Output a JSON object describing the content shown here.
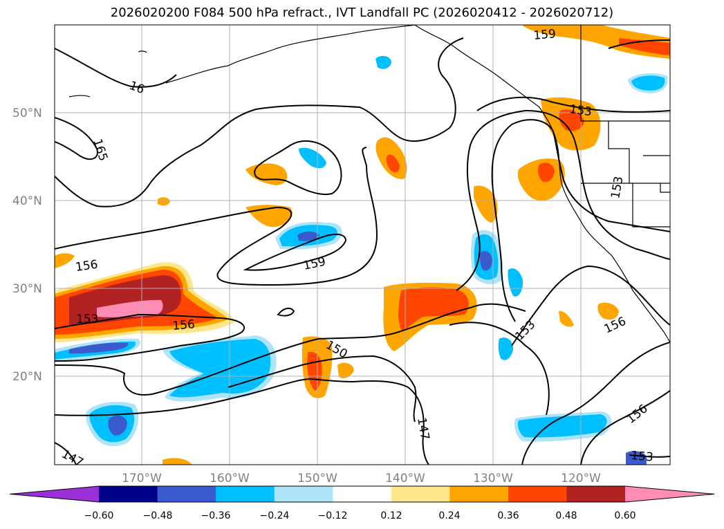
{
  "title": "2026020200 F084 500 hPa refract., IVT Landfall PC (2026020412 - 2026020712)",
  "map": {
    "lat_labels": [
      "50°N",
      "40°N",
      "30°N",
      "20°N"
    ],
    "lon_labels": [
      "170°W",
      "160°W",
      "150°W",
      "140°W",
      "130°W",
      "120°W"
    ],
    "contour_labels": [
      "16",
      "165",
      "156",
      "153",
      "156",
      "159",
      "150",
      "147",
      "147",
      "159",
      "153",
      "153",
      "153",
      "156",
      "156",
      "153"
    ]
  },
  "colorbar": {
    "colors": [
      "#9b30d9",
      "#00008b",
      "#3a5bcd",
      "#00bfff",
      "#aee4fa",
      "#ffffff",
      "#ffe68a",
      "#ffa500",
      "#ff4500",
      "#b22222",
      "#ff8cb4"
    ],
    "ticks": [
      "−0.60",
      "−0.48",
      "−0.36",
      "−0.24",
      "−0.12",
      "0.12",
      "0.24",
      "0.36",
      "0.48",
      "0.60"
    ]
  }
}
